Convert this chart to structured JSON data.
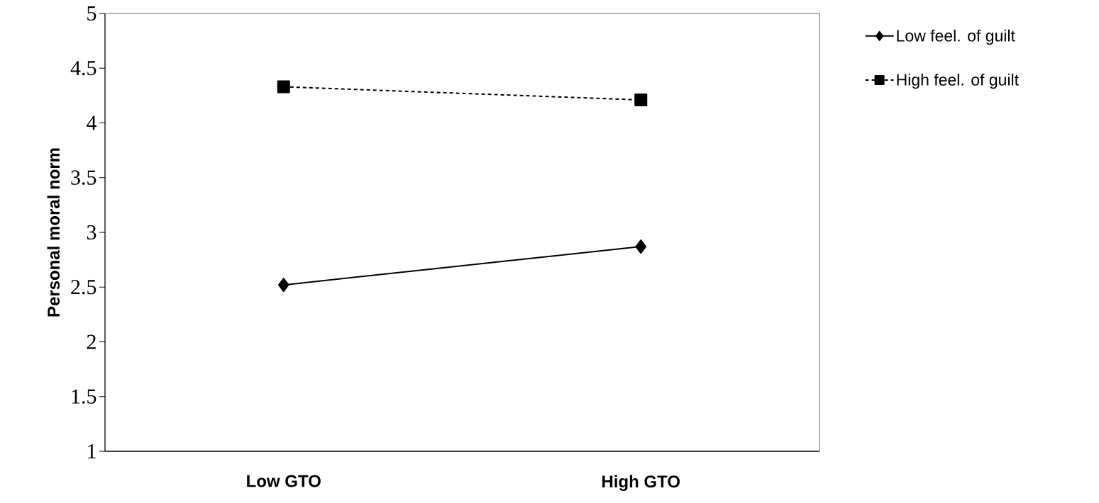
{
  "chart_data": {
    "type": "line",
    "ylabel": "Personal moral norm",
    "categories": [
      "Low GTO",
      "High GTO"
    ],
    "series": [
      {
        "name": "Low feel. of guilt",
        "color": "#000000",
        "values": [
          2.52,
          2.87
        ],
        "marker": "diamond",
        "line_style": "solid"
      },
      {
        "name": "High feel. of guilt",
        "color": "#000000",
        "values": [
          4.33,
          4.21
        ],
        "marker": "square",
        "line_style": "dashed"
      }
    ],
    "ylim": [
      1,
      5
    ],
    "yticks": [
      1,
      1.5,
      2,
      2.5,
      3,
      3.5,
      4,
      4.5,
      5
    ],
    "legend": "right"
  }
}
